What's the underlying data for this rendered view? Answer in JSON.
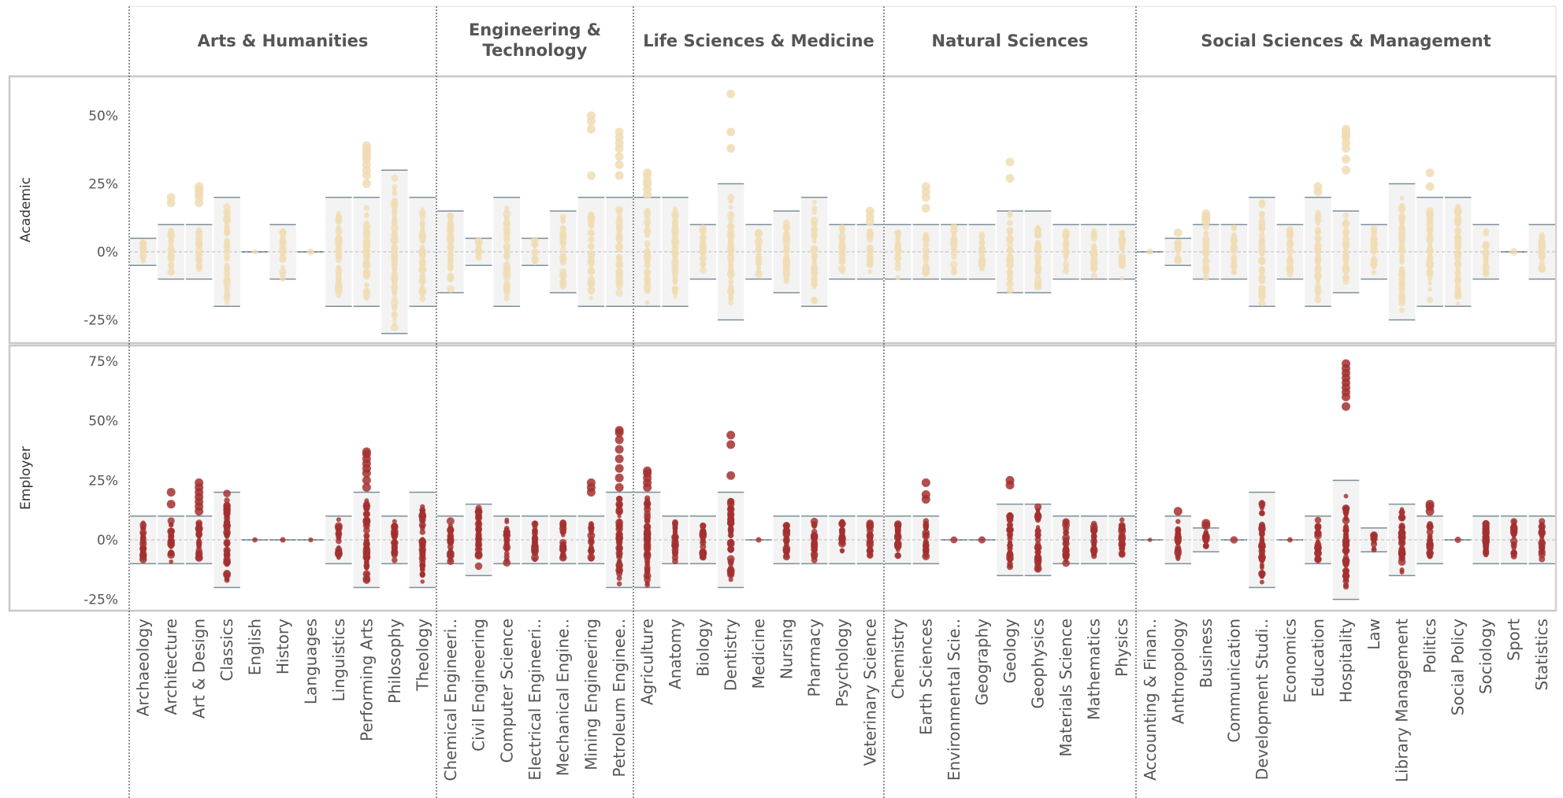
{
  "chart_data": {
    "type": "scatter",
    "title": "",
    "columns": [
      {
        "name": "Arts & Humanities",
        "subjects": [
          "Archaeology",
          "Architecture",
          "Art & Design",
          "Classics",
          "English",
          "History",
          "Languages",
          "Linguistics",
          "Performing Arts",
          "Philosophy",
          "Theology"
        ]
      },
      {
        "name": "Engineering & Technology",
        "subjects": [
          "Chemical Engineeri..",
          "Civil Engineering",
          "Computer Science",
          "Electrical Engineeri..",
          "Mechanical Engine..",
          "Mining Engineering",
          "Petroleum Enginee.."
        ]
      },
      {
        "name": "Life Sciences & Medicine",
        "subjects": [
          "Agriculture",
          "Anatomy",
          "Biology",
          "Dentistry",
          "Medicine",
          "Nursing",
          "Pharmacy",
          "Psychology",
          "Veterinary Science"
        ]
      },
      {
        "name": "Natural Sciences",
        "subjects": [
          "Chemistry",
          "Earth Sciences",
          "Environmental Scie..",
          "Geography",
          "Geology",
          "Geophysics",
          "Materials Science",
          "Mathematics",
          "Physics"
        ]
      },
      {
        "name": "Social Sciences & Management",
        "subjects": [
          "Accounting & Finan..",
          "Anthropology",
          "Business",
          "Communication",
          "Development Studi..",
          "Economics",
          "Education",
          "Hospitality",
          "Law",
          "Library Management",
          "Politics",
          "Social Policy",
          "Sociology",
          "Sport",
          "Statistics"
        ]
      }
    ],
    "rows": [
      {
        "name": "Academic",
        "color": "#F0DCB4",
        "ylim": [
          -30,
          62
        ],
        "yticks": [
          {
            "v": 50,
            "label": "50%"
          },
          {
            "v": 25,
            "label": "25%"
          },
          {
            "v": 0,
            "label": "0%"
          },
          {
            "v": -25,
            "label": "-25%"
          }
        ],
        "ranges": [
          [
            -5,
            5
          ],
          [
            -10,
            10
          ],
          [
            -10,
            10
          ],
          [
            -20,
            20
          ],
          [
            0,
            0
          ],
          [
            -10,
            10
          ],
          [
            0,
            0
          ],
          [
            -20,
            20
          ],
          [
            -20,
            20
          ],
          [
            -30,
            30
          ],
          [
            -20,
            20
          ],
          [
            -15,
            15
          ],
          [
            -5,
            5
          ],
          [
            -20,
            20
          ],
          [
            -5,
            5
          ],
          [
            -15,
            15
          ],
          [
            -20,
            20
          ],
          [
            -20,
            20
          ],
          [
            -20,
            20
          ],
          [
            -20,
            20
          ],
          [
            -10,
            10
          ],
          [
            -25,
            25
          ],
          [
            -10,
            10
          ],
          [
            -15,
            15
          ],
          [
            -20,
            20
          ],
          [
            -10,
            10
          ],
          [
            -10,
            10
          ],
          [
            -10,
            10
          ],
          [
            -10,
            10
          ],
          [
            -10,
            10
          ],
          [
            -10,
            10
          ],
          [
            -15,
            15
          ],
          [
            -15,
            15
          ],
          [
            -10,
            10
          ],
          [
            -10,
            10
          ],
          [
            -10,
            10
          ],
          [
            0,
            0
          ],
          [
            -5,
            5
          ],
          [
            -10,
            10
          ],
          [
            -10,
            10
          ],
          [
            -20,
            20
          ],
          [
            -10,
            10
          ],
          [
            -20,
            20
          ],
          [
            -15,
            15
          ],
          [
            -10,
            10
          ],
          [
            -25,
            25
          ],
          [
            -20,
            20
          ],
          [
            -20,
            20
          ],
          [
            -10,
            10
          ],
          [
            0,
            0
          ],
          [
            -10,
            10
          ]
        ],
        "outliers": [
          [],
          [
            18,
            20
          ],
          [
            18,
            20,
            21,
            22,
            23,
            24
          ],
          [],
          [],
          [],
          [],
          [],
          [
            25,
            28,
            30,
            32,
            34,
            35,
            36,
            37,
            38,
            39
          ],
          [],
          [],
          [],
          [],
          [],
          [],
          [],
          [
            28,
            45,
            48,
            50
          ],
          [
            28,
            32,
            35,
            38,
            40,
            42,
            44
          ],
          [
            21,
            23,
            25,
            26,
            28,
            29
          ],
          [],
          [],
          [
            38,
            44,
            58
          ],
          [],
          [],
          [],
          [],
          [
            11,
            13,
            15
          ],
          [],
          [
            16,
            20,
            22,
            24
          ],
          [],
          [],
          [
            27,
            33
          ],
          [],
          [],
          [],
          [],
          [],
          [
            7
          ],
          [
            11,
            12,
            13,
            14
          ],
          [],
          [],
          [],
          [
            22,
            24
          ],
          [
            30,
            34,
            38,
            40,
            42,
            43,
            44,
            45
          ],
          [],
          [],
          [
            24,
            29
          ],
          [],
          [],
          [],
          []
        ]
      },
      {
        "name": "Employer",
        "color": "#A3302F",
        "ylim": [
          -28,
          80
        ],
        "yticks": [
          {
            "v": 75,
            "label": "75%"
          },
          {
            "v": 50,
            "label": "50%"
          },
          {
            "v": 25,
            "label": "25%"
          },
          {
            "v": 0,
            "label": "0%"
          },
          {
            "v": -25,
            "label": "-25%"
          }
        ],
        "ranges": [
          [
            -10,
            10
          ],
          [
            -10,
            10
          ],
          [
            -10,
            10
          ],
          [
            -20,
            20
          ],
          [
            0,
            0
          ],
          [
            0,
            0
          ],
          [
            0,
            0
          ],
          [
            -10,
            10
          ],
          [
            -20,
            20
          ],
          [
            -10,
            10
          ],
          [
            -20,
            20
          ],
          [
            -10,
            10
          ],
          [
            -15,
            15
          ],
          [
            -10,
            10
          ],
          [
            -10,
            10
          ],
          [
            -10,
            10
          ],
          [
            -10,
            10
          ],
          [
            -20,
            20
          ],
          [
            -20,
            20
          ],
          [
            -10,
            10
          ],
          [
            -10,
            10
          ],
          [
            -20,
            20
          ],
          [
            0,
            0
          ],
          [
            -10,
            10
          ],
          [
            -10,
            10
          ],
          [
            -10,
            10
          ],
          [
            -10,
            10
          ],
          [
            -10,
            10
          ],
          [
            -10,
            10
          ],
          [
            0,
            0
          ],
          [
            0,
            0
          ],
          [
            -15,
            15
          ],
          [
            -15,
            15
          ],
          [
            -10,
            10
          ],
          [
            -10,
            10
          ],
          [
            -10,
            10
          ],
          [
            0,
            0
          ],
          [
            -10,
            10
          ],
          [
            -5,
            5
          ],
          [
            0,
            0
          ],
          [
            -20,
            20
          ],
          [
            0,
            0
          ],
          [
            -10,
            10
          ],
          [
            -25,
            25
          ],
          [
            -5,
            5
          ],
          [
            -15,
            15
          ],
          [
            -10,
            10
          ],
          [
            0,
            0
          ],
          [
            -10,
            10
          ],
          [
            -10,
            10
          ],
          [
            -10,
            10
          ]
        ],
        "outliers": [
          [],
          [
            15,
            20
          ],
          [
            12,
            14,
            16,
            18,
            20,
            22,
            24
          ],
          [],
          [],
          [],
          [],
          [],
          [
            22,
            25,
            28,
            30,
            32,
            34,
            36,
            37
          ],
          [],
          [],
          [],
          [],
          [],
          [],
          [],
          [
            20,
            22,
            24
          ],
          [
            22,
            26,
            30,
            34,
            38,
            42,
            45,
            46
          ],
          [
            22,
            24,
            26,
            28,
            29
          ],
          [],
          [],
          [
            27,
            40,
            44
          ],
          [],
          [],
          [],
          [],
          [],
          [],
          [
            17,
            19,
            24
          ],
          [],
          [],
          [
            23,
            25
          ],
          [],
          [],
          [],
          [],
          [],
          [
            12
          ],
          [
            6,
            7
          ],
          [],
          [],
          [],
          [],
          [
            56,
            60,
            62,
            64,
            66,
            68,
            70,
            72,
            74
          ],
          [],
          [],
          [
            12,
            14,
            15
          ],
          [],
          [],
          [],
          []
        ]
      }
    ]
  }
}
